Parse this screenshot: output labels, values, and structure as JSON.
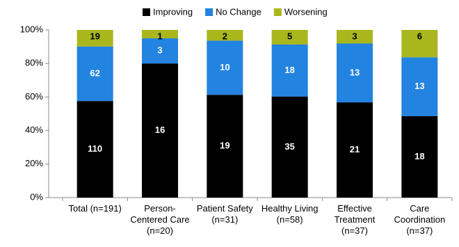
{
  "chart_data": {
    "type": "stacked_bar",
    "categories": [
      "Total (n=191)",
      "Person-\nCentered Care\n(n=20)",
      "Patient Safety\n(n=31)",
      "Healthy Living\n(n=58)",
      "Effective\nTreatment\n(n=37)",
      "Care\nCoordination\n(n=37)"
    ],
    "series": [
      {
        "name": "Improving",
        "color": "#000000",
        "values": [
          57.6,
          80,
          61.3,
          60.3,
          56.8,
          48.6
        ],
        "counts": [
          110,
          16,
          19,
          35,
          21,
          18
        ]
      },
      {
        "name": "No Change",
        "color": "#2383e0",
        "values": [
          32.5,
          15,
          32.3,
          31.0,
          35.1,
          35.1
        ],
        "counts": [
          62,
          3,
          10,
          18,
          13,
          13
        ]
      },
      {
        "name": "Worsening",
        "color": "#a9b71d",
        "values": [
          9.9,
          5,
          6.4,
          8.7,
          8.1,
          16.3
        ],
        "counts": [
          19,
          1,
          2,
          5,
          3,
          6
        ]
      }
    ],
    "ylim": [
      0,
      100
    ],
    "yticks": [
      {
        "value": 0,
        "label": "0%"
      },
      {
        "value": 20,
        "label": "20%"
      },
      {
        "value": 40,
        "label": "40%"
      },
      {
        "value": 60,
        "label": "60%"
      },
      {
        "value": 80,
        "label": "80%"
      },
      {
        "value": 100,
        "label": "100%"
      }
    ],
    "legend": "top"
  }
}
